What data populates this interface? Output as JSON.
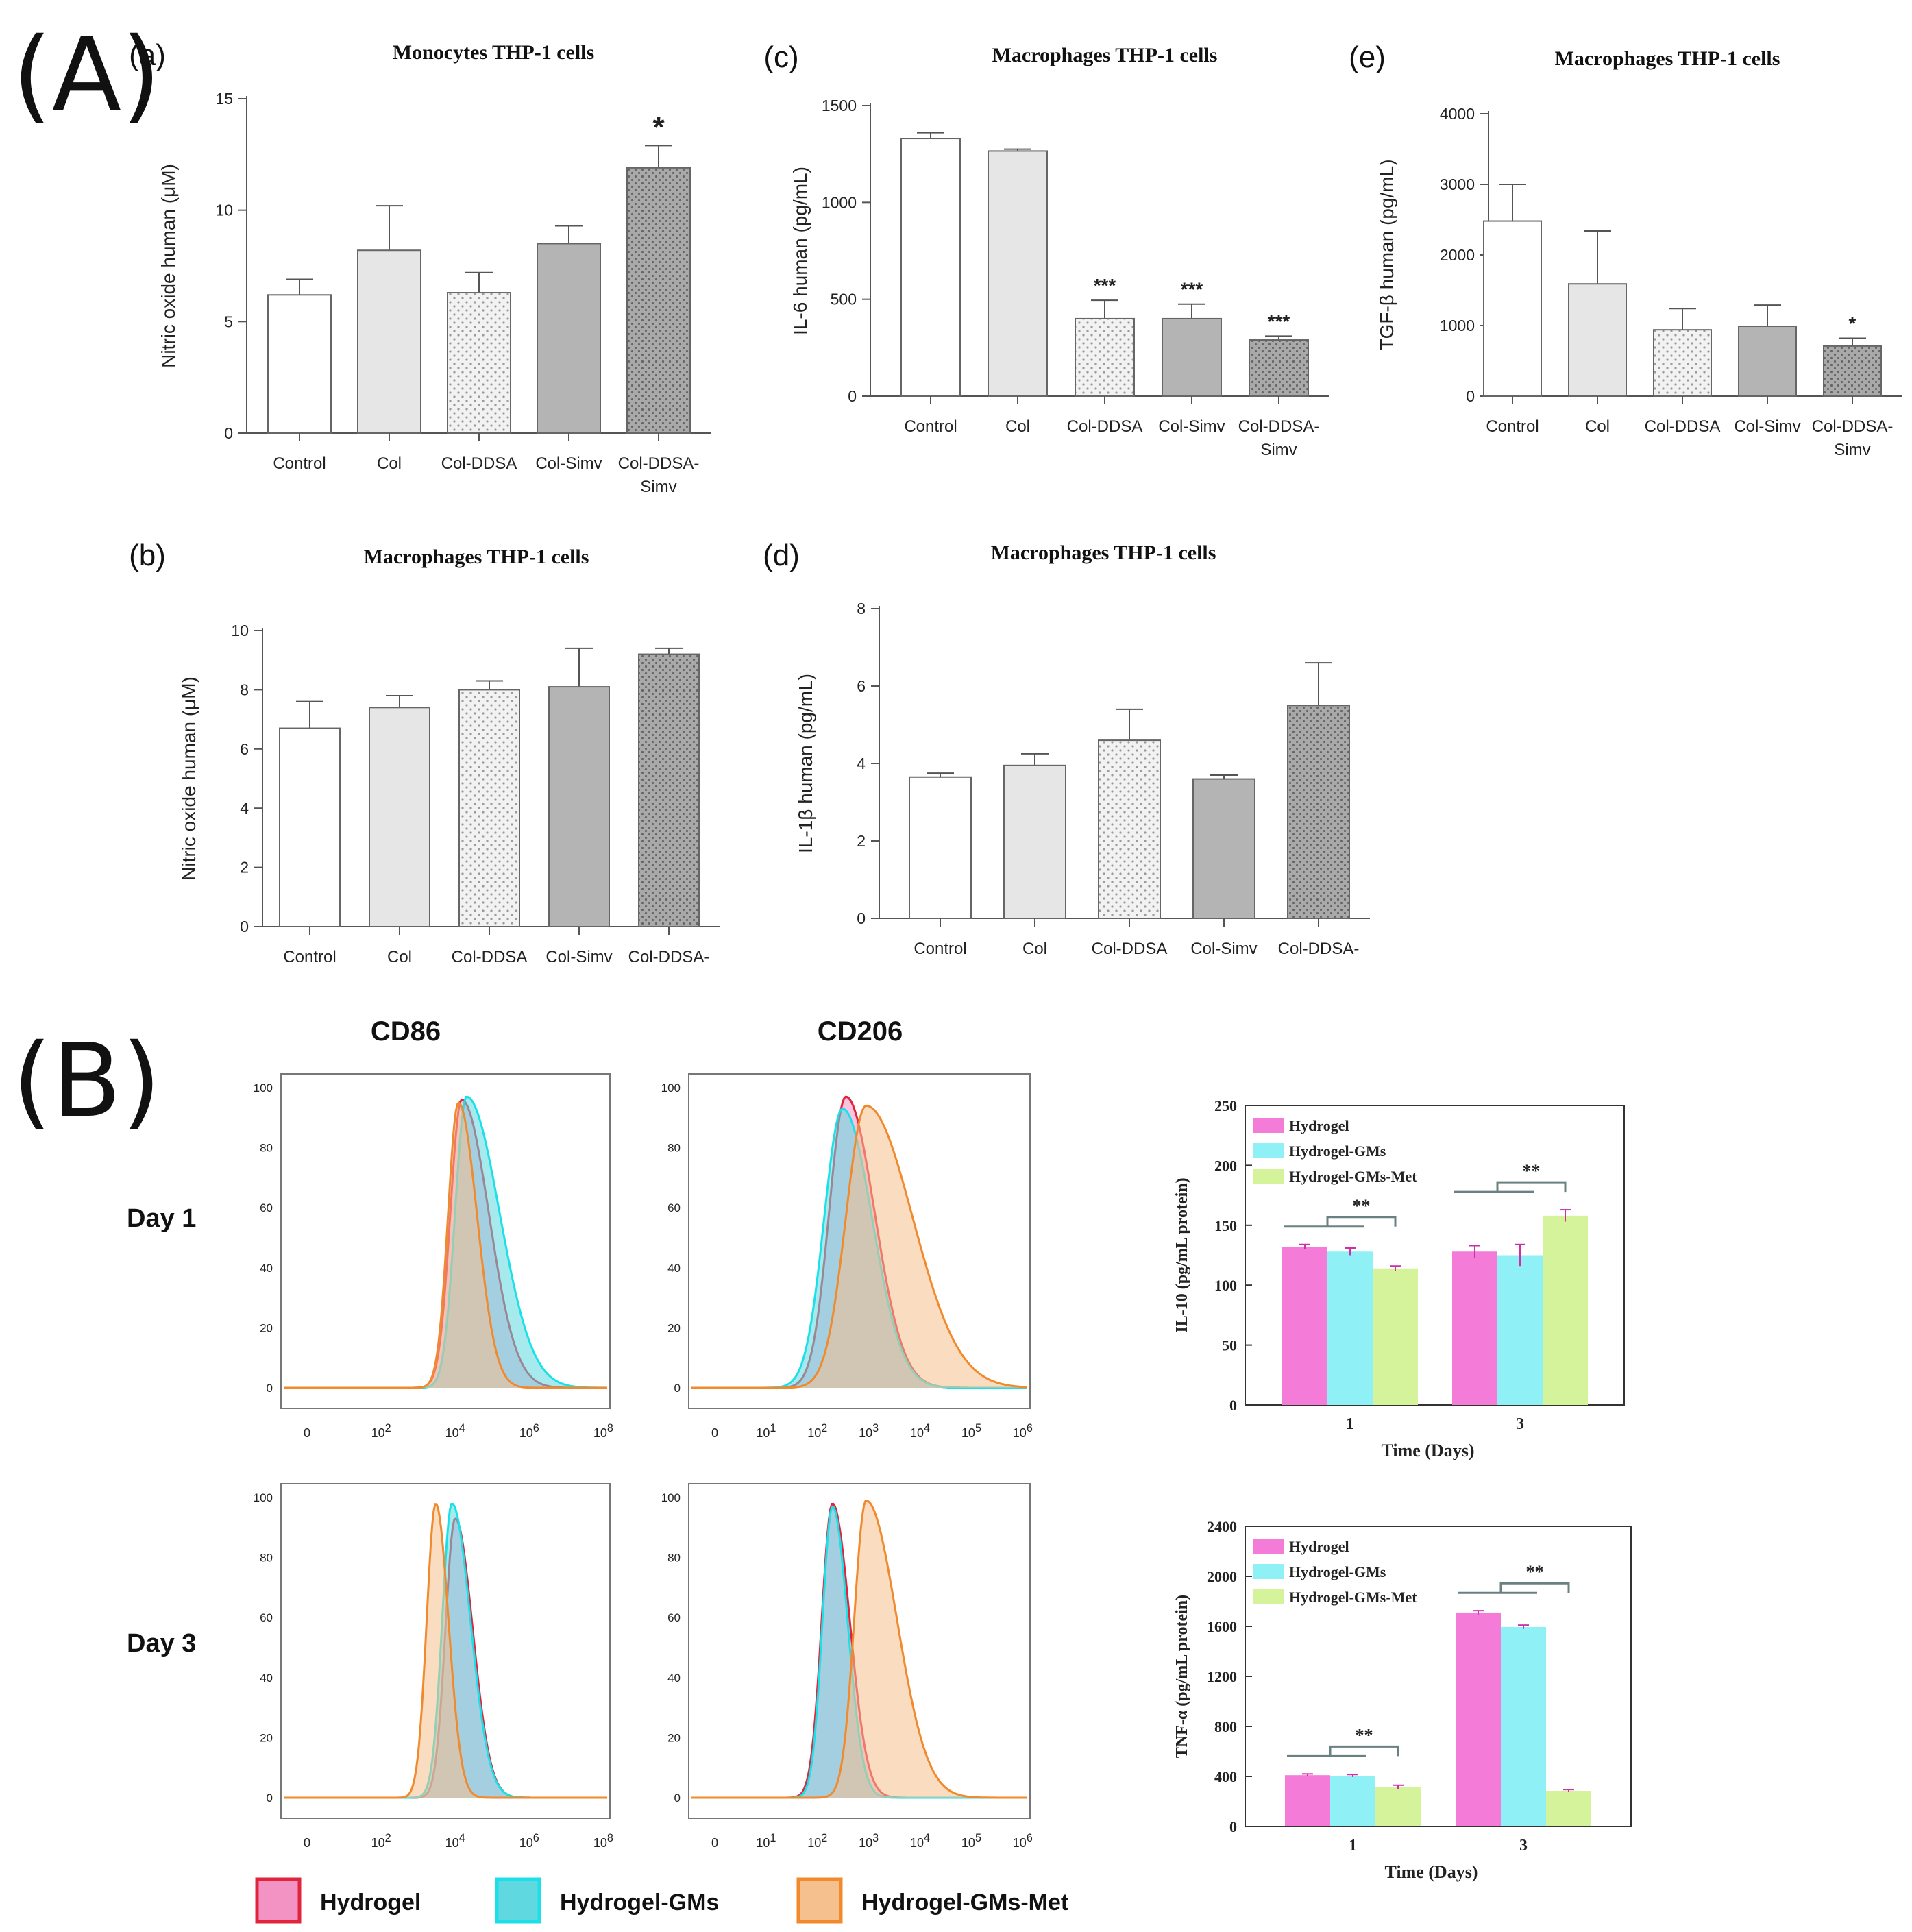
{
  "section_labels": {
    "A": "(A)",
    "B": "(B)"
  },
  "colors": {
    "stroke": "#555555",
    "text": "#222222",
    "white_bar": "#ffffff",
    "light_bar": "#e6e6e6",
    "dotted_bar": "#eeeeee",
    "mid_bar": "#b4b4b4",
    "dark_dotted_bar": "#a8a8a8",
    "hydrogel": "#f57bd8",
    "hydrogel_gms": "#8ff1f5",
    "hydrogel_gms_met": "#d5f39a",
    "hydrogel_curve": "#e0243c",
    "hydrogel_fill": "#f293c4",
    "gms_curve": "#1ce0e8",
    "gms_fill": "#5fd8e0",
    "met_curve": "#f08a2c",
    "met_fill": "#f5c08e"
  },
  "flow": {
    "columns": [
      "CD86",
      "CD206"
    ],
    "rows": [
      "Day 1",
      "Day 3"
    ],
    "y_ticks": [
      "100",
      "80",
      "60",
      "40",
      "20",
      "0"
    ],
    "cd86_x_ticks": [
      "0",
      "10^2",
      "10^4",
      "10^6",
      "10^8"
    ],
    "cd206_x_ticks": [
      "0",
      "10^1",
      "10^2",
      "10^3",
      "10^4",
      "10^5",
      "10^6"
    ],
    "legend": [
      "Hydrogel",
      "Hydrogel-GMs",
      "Hydrogel-GMs-Met"
    ]
  },
  "chart_data": [
    {
      "id": "a",
      "panel_label": "(a)",
      "type": "bar",
      "title": "Monocytes THP-1 cells",
      "ylabel": "Nitric oxide human (μM)",
      "xlabel": "",
      "ylim": [
        0,
        15
      ],
      "yticks": [
        0,
        5,
        10,
        15
      ],
      "categories": [
        "Control",
        "Col",
        "Col-DDSA",
        "Col-Simv",
        "Col-DDSA-\nSimv"
      ],
      "values": [
        6.2,
        8.2,
        6.3,
        8.5,
        11.9
      ],
      "errors": [
        0.7,
        2.0,
        0.9,
        0.8,
        1.0
      ],
      "annotations": [
        "",
        "",
        "",
        "",
        "*"
      ]
    },
    {
      "id": "b",
      "panel_label": "(b)",
      "type": "bar",
      "title": "Macrophages THP-1 cells",
      "ylabel": "Nitric oxide human (μM)",
      "xlabel": "",
      "ylim": [
        0,
        10
      ],
      "yticks": [
        0,
        2,
        4,
        6,
        8,
        10
      ],
      "categories": [
        "Control",
        "Col",
        "Col-DDSA",
        "Col-Simv",
        "Col-DDSA-"
      ],
      "values": [
        6.7,
        7.4,
        8.0,
        8.1,
        9.2
      ],
      "errors": [
        0.9,
        0.4,
        0.3,
        1.3,
        0.2
      ],
      "annotations": [
        "",
        "",
        "",
        "",
        ""
      ]
    },
    {
      "id": "c",
      "panel_label": "(c)",
      "type": "bar",
      "title": "Macrophages THP-1 cells",
      "ylabel": "IL-6 human (pg/mL)",
      "xlabel": "",
      "ylim": [
        0,
        1500
      ],
      "yticks": [
        0,
        500,
        1000,
        1500
      ],
      "categories": [
        "Control",
        "Col",
        "Col-DDSA",
        "Col-Simv",
        "Col-DDSA-\nSimv"
      ],
      "values": [
        1330,
        1265,
        400,
        400,
        290
      ],
      "errors": [
        30,
        10,
        95,
        75,
        20
      ],
      "annotations": [
        "",
        "",
        "***",
        "***",
        "***"
      ]
    },
    {
      "id": "d",
      "panel_label": "(d)",
      "type": "bar",
      "title": "Macrophages THP-1 cells",
      "ylabel": "IL-1β human (pg/mL)",
      "xlabel": "",
      "ylim": [
        0,
        8
      ],
      "yticks": [
        0,
        2,
        4,
        6,
        8
      ],
      "categories": [
        "Control",
        "Col",
        "Col-DDSA",
        "Col-Simv",
        "Col-DDSA-"
      ],
      "values": [
        3.65,
        3.95,
        4.6,
        3.6,
        5.5
      ],
      "errors": [
        0.1,
        0.3,
        0.8,
        0.1,
        1.1
      ],
      "annotations": [
        "",
        "",
        "",
        "",
        ""
      ]
    },
    {
      "id": "e",
      "panel_label": "(e)",
      "type": "bar",
      "title": "Macrophages THP-1 cells",
      "ylabel": "TGF-β human (pg/mL)",
      "xlabel": "",
      "ylim": [
        0,
        4000
      ],
      "yticks": [
        0,
        1000,
        2000,
        3000,
        4000
      ],
      "categories": [
        "Control",
        "Col",
        "Col-DDSA",
        "Col-Simv",
        "Col-DDSA-\nSimv"
      ],
      "values": [
        2480,
        1590,
        940,
        990,
        710
      ],
      "errors": [
        520,
        750,
        300,
        300,
        110
      ],
      "annotations": [
        "",
        "",
        "",
        "",
        "*"
      ]
    },
    {
      "id": "il10",
      "type": "bar",
      "title": "",
      "ylabel": "IL-10 (pg/mL protein)",
      "xlabel": "Time (Days)",
      "ylim": [
        0,
        250
      ],
      "yticks": [
        0,
        50,
        100,
        150,
        200,
        250
      ],
      "categories": [
        "1",
        "3"
      ],
      "series": [
        {
          "name": "Hydrogel",
          "values": [
            132,
            128
          ],
          "errors": [
            2,
            5
          ]
        },
        {
          "name": "Hydrogel-GMs",
          "values": [
            128,
            125
          ],
          "errors": [
            3,
            9
          ]
        },
        {
          "name": "Hydrogel-GMs-Met",
          "values": [
            114,
            158
          ],
          "errors": [
            2,
            5
          ]
        }
      ],
      "significance": [
        "**",
        "**"
      ],
      "legend_position": "top-left"
    },
    {
      "id": "tnf",
      "type": "bar",
      "title": "",
      "ylabel": "TNF-α (pg/mL protein)",
      "xlabel": "Time (Days)",
      "ylim": [
        0,
        2400
      ],
      "yticks": [
        0,
        400,
        800,
        1200,
        1600,
        2000,
        2400
      ],
      "categories": [
        "1",
        "3"
      ],
      "series": [
        {
          "name": "Hydrogel",
          "values": [
            410,
            1710
          ],
          "errors": [
            10,
            15
          ]
        },
        {
          "name": "Hydrogel-GMs",
          "values": [
            405,
            1595
          ],
          "errors": [
            10,
            15
          ]
        },
        {
          "name": "Hydrogel-GMs-Met",
          "values": [
            315,
            285
          ],
          "errors": [
            15,
            10
          ]
        }
      ],
      "significance": [
        "**",
        "**"
      ],
      "legend_position": "top-left"
    }
  ]
}
